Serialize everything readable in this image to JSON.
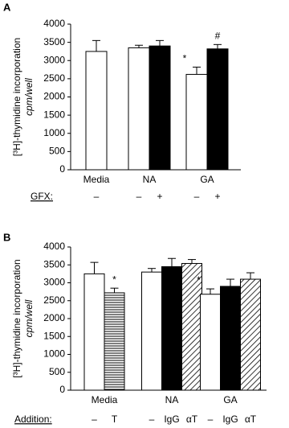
{
  "chart_data": [
    {
      "type": "bar",
      "label": "A",
      "ylabel": "[³H]-thymidine incorporation",
      "ylabel_unit": "cpm/well",
      "categories": [
        "Media",
        "NA",
        "GA"
      ],
      "ylim": [
        0,
        4000
      ],
      "yticks": [
        0,
        500,
        1000,
        1500,
        2000,
        2500,
        3000,
        3500,
        4000
      ],
      "treatment_label": "GFX:",
      "series": [
        {
          "fill": "#ffffff",
          "values": [
            3250,
            3350,
            2620
          ],
          "errors": [
            300,
            70,
            200
          ],
          "markers": [
            null,
            null,
            "*"
          ],
          "treatments": [
            "–",
            "–",
            "–"
          ]
        },
        {
          "fill": "#000000",
          "values": [
            null,
            3400,
            3320
          ],
          "errors": [
            null,
            150,
            120
          ],
          "markers": [
            null,
            null,
            "#"
          ],
          "treatments": [
            null,
            "+",
            "+"
          ]
        }
      ]
    },
    {
      "type": "bar",
      "label": "B",
      "ylabel": "[³H]-thymidine incorporation",
      "ylabel_unit": "cpm/well",
      "categories": [
        "Media",
        "NA",
        "GA"
      ],
      "ylim": [
        0,
        4000
      ],
      "yticks": [
        0,
        500,
        1000,
        1500,
        2000,
        2500,
        3000,
        3500,
        4000
      ],
      "treatment_label": "Addition:",
      "series": [
        {
          "fill": "#ffffff",
          "values": [
            3250,
            3300,
            2680
          ],
          "errors": [
            320,
            100,
            150
          ],
          "markers": [
            null,
            null,
            "*"
          ],
          "treatments": [
            "–",
            "–",
            "–"
          ]
        },
        {
          "fill": "#000000",
          "values": [
            null,
            3450,
            2900
          ],
          "errors": [
            null,
            230,
            200
          ],
          "markers": [
            null,
            null,
            null
          ],
          "treatments": [
            null,
            "IgG",
            "IgG"
          ]
        },
        {
          "fill": "hatch-diagonal",
          "values": [
            null,
            3540,
            3100
          ],
          "errors": [
            null,
            110,
            180
          ],
          "markers": [
            null,
            null,
            null
          ],
          "treatments": [
            null,
            "αT",
            "αT"
          ]
        },
        {
          "fill": "hatch-horizontal",
          "values": [
            2720,
            null,
            null
          ],
          "errors": [
            130,
            null,
            null
          ],
          "markers": [
            "*",
            null,
            null
          ],
          "treatments": [
            "T",
            null,
            null
          ]
        }
      ]
    }
  ]
}
